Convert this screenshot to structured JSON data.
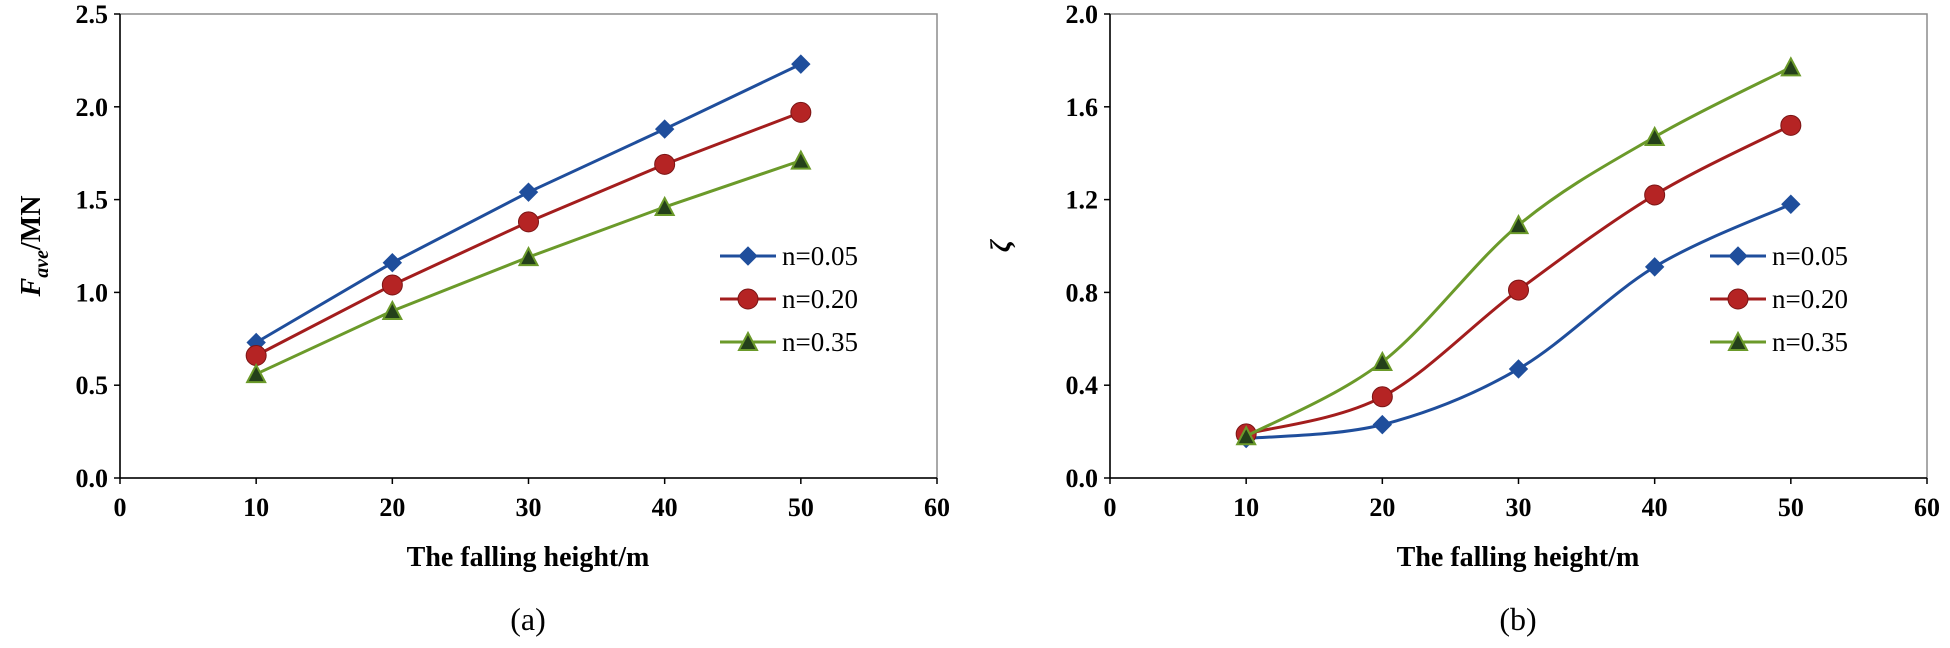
{
  "chart_data": [
    {
      "type": "line",
      "panel": "(a)",
      "xlabel": "The falling height/m",
      "ylabel_main": "F",
      "ylabel_sub": "ave",
      "ylabel_unit": "/MN",
      "xlim": [
        0,
        60
      ],
      "ylim": [
        0,
        2.5
      ],
      "xticks": [
        "0",
        "10",
        "20",
        "30",
        "40",
        "50",
        "60"
      ],
      "yticks": [
        "0.0",
        "0.5",
        "1.0",
        "1.5",
        "2.0",
        "2.5"
      ],
      "smooth": false,
      "x": [
        10,
        20,
        30,
        40,
        50
      ],
      "legend_position": "right-middle",
      "series": [
        {
          "name": "n=0.05",
          "marker": "diamond",
          "color": "#1f4e9c",
          "fill": "#1f4e9c",
          "values": [
            0.73,
            1.16,
            1.54,
            1.88,
            2.23
          ]
        },
        {
          "name": "n=0.20",
          "marker": "circle",
          "color": "#a31d1d",
          "fill": "#b52424",
          "values": [
            0.66,
            1.04,
            1.38,
            1.69,
            1.97
          ]
        },
        {
          "name": "n=0.35",
          "marker": "triangle",
          "color": "#6b9a2a",
          "fill": "#24401a",
          "values": [
            0.56,
            0.9,
            1.19,
            1.46,
            1.71
          ]
        }
      ]
    },
    {
      "type": "line",
      "panel": "(b)",
      "xlabel": "The falling height/m",
      "ylabel_main": "ζ",
      "ylabel_sub": "",
      "ylabel_unit": "",
      "xlim": [
        0,
        60
      ],
      "ylim": [
        0,
        2.0
      ],
      "xticks": [
        "0",
        "10",
        "20",
        "30",
        "40",
        "50",
        "60"
      ],
      "yticks": [
        "0.0",
        "0.4",
        "0.8",
        "1.2",
        "1.6",
        "2.0"
      ],
      "smooth": true,
      "x": [
        10,
        20,
        30,
        40,
        50
      ],
      "legend_position": "right-middle",
      "series": [
        {
          "name": "n=0.05",
          "marker": "diamond",
          "color": "#1f4e9c",
          "fill": "#1f4e9c",
          "values": [
            0.17,
            0.23,
            0.47,
            0.91,
            1.18
          ]
        },
        {
          "name": "n=0.20",
          "marker": "circle",
          "color": "#a31d1d",
          "fill": "#b52424",
          "values": [
            0.19,
            0.35,
            0.81,
            1.22,
            1.52
          ]
        },
        {
          "name": "n=0.35",
          "marker": "triangle",
          "color": "#6b9a2a",
          "fill": "#24401a",
          "values": [
            0.18,
            0.5,
            1.09,
            1.47,
            1.77
          ]
        }
      ]
    }
  ]
}
